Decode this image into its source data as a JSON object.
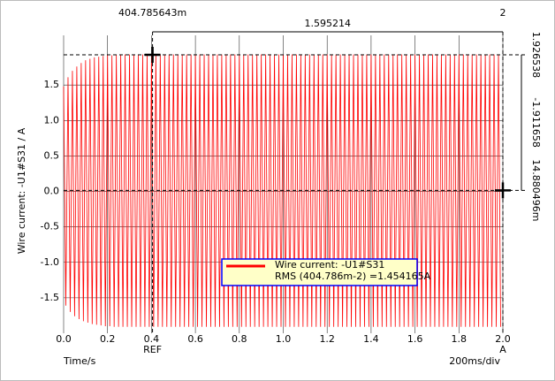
{
  "chart_data": {
    "type": "line",
    "y_label": "Wire current: -U1#S31 / A",
    "x_label": "Time/s",
    "scale_label": "200ms/div",
    "ref_label": "REF",
    "a_label": "A",
    "rms_label": "RMS (404.786m-2) =1.454165A",
    "xlim": [
      0,
      2.0
    ],
    "ylim": [
      -2.0,
      2.2
    ],
    "xticks": [
      {
        "value": 0,
        "label": "0.0"
      },
      0.2,
      0.4,
      0.6,
      0.8,
      {
        "value": 1.0,
        "label": "1.0"
      },
      1.2,
      1.4,
      1.6,
      1.8,
      {
        "value": 2.0,
        "label": "2.0"
      }
    ],
    "yticks": [
      -1.5,
      {
        "value": -1.0,
        "label": "-1.0"
      },
      -0.5,
      {
        "value": 0,
        "label": "0.0"
      },
      0.5,
      {
        "value": 1.0,
        "label": "1.0"
      },
      1.5
    ],
    "grid": true,
    "cursors": {
      "x1": {
        "value": 0.404785643,
        "label": "404.785643m"
      },
      "x2": 2,
      "dx": 1.595214,
      "y1": 1.926538,
      "y2": {
        "value": 0.014880496,
        "label": "14.880496m"
      },
      "dy": -1.911658
    },
    "x": [
      0,
      0.01,
      0.02,
      0.03,
      0.04,
      0.05,
      0.06,
      0.07,
      0.08,
      0.09,
      0.1,
      0.11,
      0.12,
      0.13,
      0.14,
      0.15,
      0.16,
      0.17,
      0.18,
      0.19,
      0.2,
      0.21,
      0.22,
      0.23,
      0.24,
      0.25,
      0.26,
      0.27,
      0.28,
      0.29,
      0.3,
      0.31,
      0.32,
      0.33,
      0.34,
      0.35,
      0.36,
      0.37,
      0.38,
      0.39,
      0.4,
      0.41,
      0.42,
      0.43,
      0.44,
      0.45,
      0.46,
      0.47,
      0.48,
      0.49,
      0.5,
      0.51,
      0.52,
      0.53,
      0.54,
      0.55,
      0.56,
      0.57,
      0.58,
      0.59,
      0.6,
      0.61,
      0.62,
      0.63,
      0.64,
      0.65,
      0.66,
      0.67,
      0.68,
      0.69,
      0.7,
      0.71,
      0.72,
      0.73,
      0.74,
      0.75,
      0.76,
      0.77,
      0.78,
      0.79,
      0.8,
      0.81,
      0.82,
      0.83,
      0.84,
      0.85,
      0.86,
      0.87,
      0.88,
      0.89,
      0.9,
      0.91,
      0.92,
      0.93,
      0.94,
      0.95,
      0.96,
      0.97,
      0.98,
      0.99,
      1,
      1.01,
      1.02,
      1.03,
      1.04,
      1.05,
      1.06,
      1.07,
      1.08,
      1.09,
      1.1,
      1.11,
      1.12,
      1.13,
      1.14,
      1.15,
      1.16,
      1.17,
      1.18,
      1.19,
      1.2,
      1.21,
      1.22,
      1.23,
      1.24,
      1.25,
      1.26,
      1.27,
      1.28,
      1.29,
      1.3,
      1.31,
      1.32,
      1.33,
      1.34,
      1.35,
      1.36,
      1.37,
      1.38,
      1.39,
      1.4,
      1.41,
      1.42,
      1.43,
      1.44,
      1.45,
      1.46,
      1.47,
      1.48,
      1.49,
      1.5,
      1.51,
      1.52,
      1.53,
      1.54,
      1.55,
      1.56,
      1.57,
      1.58,
      1.59,
      1.6,
      1.61,
      1.62,
      1.63,
      1.64,
      1.65,
      1.66,
      1.67,
      1.68,
      1.69,
      1.7,
      1.71,
      1.72,
      1.73,
      1.74,
      1.75,
      1.76,
      1.77,
      1.78,
      1.79,
      1.8,
      1.81,
      1.82,
      1.83,
      1.84,
      1.85,
      1.86,
      1.87,
      1.88,
      1.89,
      1.9,
      1.91,
      1.92,
      1.93,
      1.94,
      1.95,
      1.96,
      1.97,
      1.98,
      1.99
    ],
    "series": [
      {
        "name": "Wire current: -U1#S31",
        "color": "#ff0000",
        "values": [
          1.48,
          -1.61,
          1.61,
          -1.7,
          1.7,
          -1.76,
          1.76,
          -1.8,
          1.81,
          -1.83,
          1.85,
          -1.85,
          1.87,
          -1.87,
          1.89,
          -1.88,
          1.9,
          -1.89,
          1.91,
          -1.9,
          1.92,
          -1.9,
          1.92,
          -1.91,
          1.93,
          -1.91,
          1.93,
          -1.91,
          1.93,
          -1.91,
          1.93,
          -1.91,
          1.93,
          -1.91,
          1.93,
          -1.91,
          1.93,
          -1.91,
          1.93,
          -1.91,
          1.93,
          -1.91,
          1.93,
          -1.91,
          1.93,
          -1.91,
          1.93,
          -1.91,
          1.93,
          -1.91,
          1.93,
          -1.91,
          1.93,
          -1.91,
          1.93,
          -1.91,
          1.93,
          -1.91,
          1.93,
          -1.91,
          1.93,
          -1.91,
          1.93,
          -1.91,
          1.93,
          -1.91,
          1.93,
          -1.91,
          1.93,
          -1.91,
          1.93,
          -1.91,
          1.93,
          -1.91,
          1.93,
          -1.91,
          1.93,
          -1.91,
          1.93,
          -1.91,
          1.93,
          -1.91,
          1.93,
          -1.91,
          1.93,
          -1.91,
          1.93,
          -1.91,
          1.93,
          -1.91,
          1.93,
          -1.91,
          1.93,
          -1.91,
          1.93,
          -1.91,
          1.93,
          -1.91,
          1.93,
          -1.91,
          1.93,
          -1.91,
          1.93,
          -1.91,
          1.93,
          -1.91,
          1.93,
          -1.91,
          1.93,
          -1.91,
          1.93,
          -1.91,
          1.93,
          -1.91,
          1.93,
          -1.91,
          1.93,
          -1.91,
          1.93,
          -1.91,
          1.93,
          -1.91,
          1.93,
          -1.91,
          1.93,
          -1.91,
          1.93,
          -1.91,
          1.93,
          -1.91,
          1.93,
          -1.91,
          1.93,
          -1.91,
          1.93,
          -1.91,
          1.93,
          -1.91,
          1.93,
          -1.91,
          1.93,
          -1.91,
          1.93,
          -1.91,
          1.93,
          -1.91,
          1.93,
          -1.91,
          1.93,
          -1.91,
          1.93,
          -1.91,
          1.93,
          -1.91,
          1.93,
          -1.91,
          1.93,
          -1.91,
          1.93,
          -1.91,
          1.93,
          -1.91,
          1.93,
          -1.91,
          1.93,
          -1.91,
          1.93,
          -1.91,
          1.93,
          -1.91,
          1.93,
          -1.91,
          1.93,
          -1.91,
          1.93,
          -1.91,
          1.93,
          -1.91,
          1.93,
          -1.91,
          1.93,
          -1.91,
          1.93,
          -1.91,
          1.93,
          -1.91,
          1.93,
          -1.91,
          1.93,
          -1.91,
          1.93,
          -1.91,
          1.93,
          -1.91,
          1.93,
          -1.91,
          1.93,
          -1.91,
          1.93,
          -1.91
        ]
      }
    ]
  }
}
